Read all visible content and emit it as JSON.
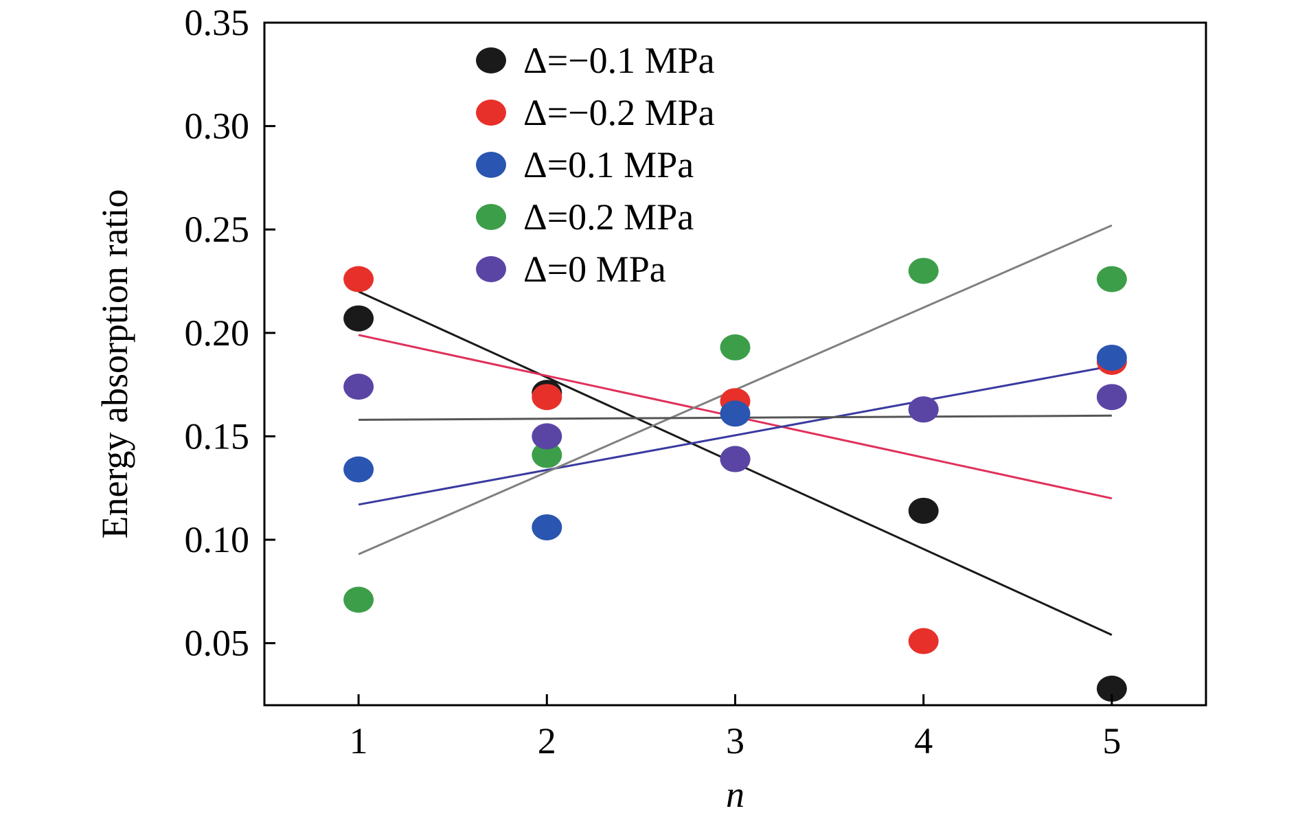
{
  "chart_data": {
    "type": "scatter",
    "title": "",
    "xlabel": "n",
    "ylabel": "Energy absorption ratio",
    "xlim": [
      0.5,
      5.5
    ],
    "ylim": [
      0.02,
      0.35
    ],
    "xticks": [
      1,
      2,
      3,
      4,
      5
    ],
    "xtick_labels": [
      "1",
      "2",
      "3",
      "4",
      "5"
    ],
    "yticks": [
      0.05,
      0.1,
      0.15,
      0.2,
      0.25,
      0.3,
      0.35
    ],
    "ytick_labels": [
      "0.05",
      "0.10",
      "0.15",
      "0.20",
      "0.25",
      "0.30",
      "0.35"
    ],
    "grid": false,
    "legend_position": "top-left",
    "series": [
      {
        "name": "Δ=−0.1 MPa",
        "color": "#1a1a1a",
        "line_color": "#1a1a1a",
        "x": [
          1,
          2,
          3,
          4,
          5
        ],
        "y": [
          0.207,
          0.171,
          0.139,
          0.114,
          0.028
        ],
        "fit": [
          0.22,
          0.054
        ]
      },
      {
        "name": "Δ=−0.2 MPa",
        "color": "#e8302a",
        "line_color": "#e0305a",
        "x": [
          1,
          2,
          3,
          4,
          5
        ],
        "y": [
          0.226,
          0.169,
          0.167,
          0.051,
          0.186
        ],
        "fit": [
          0.199,
          0.12
        ]
      },
      {
        "name": "Δ=0.1 MPa",
        "color": "#2a55b0",
        "line_color": "#3a3aa0",
        "x": [
          1,
          2,
          3,
          4,
          5
        ],
        "y": [
          0.134,
          0.106,
          0.161,
          0.163,
          0.188
        ],
        "fit": [
          0.117,
          0.184
        ]
      },
      {
        "name": "Δ=0.2 MPa",
        "color": "#3d9e4a",
        "line_color": "#808080",
        "x": [
          1,
          2,
          3,
          4,
          5
        ],
        "y": [
          0.071,
          0.141,
          0.193,
          0.23,
          0.226
        ],
        "fit": [
          0.093,
          0.252
        ]
      },
      {
        "name": "Δ=0 MPa",
        "color": "#5a45a5",
        "line_color": "#555555",
        "x": [
          1,
          2,
          3,
          4,
          5
        ],
        "y": [
          0.174,
          0.15,
          0.139,
          0.163,
          0.169
        ],
        "fit": [
          0.158,
          0.16
        ]
      }
    ]
  }
}
